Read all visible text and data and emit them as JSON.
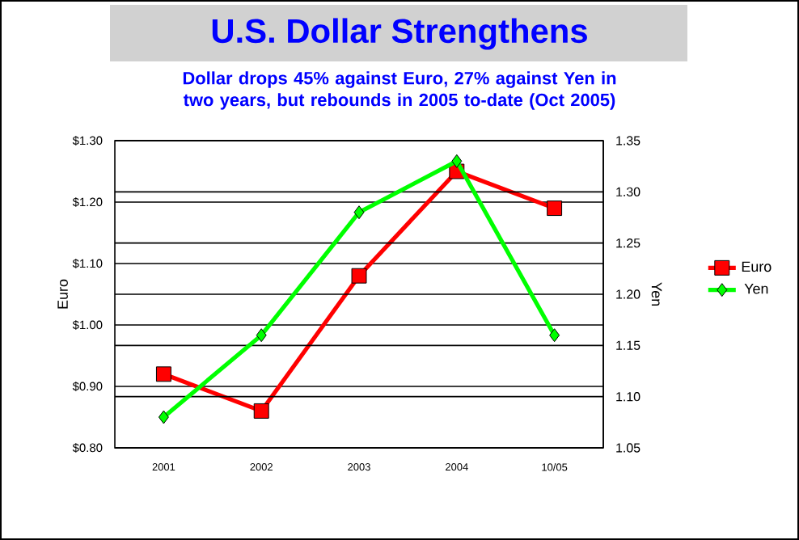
{
  "chart_data": {
    "type": "line",
    "title": "U.S. Dollar Strengthens",
    "subtitle": "Dollar drops 45% against Euro, 27% against Yen in two years, but rebounds in 2005 to-date (Oct 2005)",
    "categories": [
      "2001",
      "2002",
      "2003",
      "2004",
      "10/05"
    ],
    "ylabel": "Euro",
    "y2label": "Yen",
    "ylim": [
      0.8,
      1.3
    ],
    "yticks": [
      {
        "value": 0.8,
        "label": "$0.80"
      },
      {
        "value": 0.9,
        "label": "$0.90"
      },
      {
        "value": 1.0,
        "label": "$1.00"
      },
      {
        "value": 1.1,
        "label": "$1.10"
      },
      {
        "value": 1.2,
        "label": "$1.20"
      },
      {
        "value": 1.3,
        "label": "$1.30"
      }
    ],
    "y2lim": [
      1.05,
      1.35
    ],
    "y2ticks": [
      {
        "value": 1.05,
        "label": "1.05"
      },
      {
        "value": 1.1,
        "label": "1.10"
      },
      {
        "value": 1.15,
        "label": "1.15"
      },
      {
        "value": 1.2,
        "label": "1.20"
      },
      {
        "value": 1.25,
        "label": "1.25"
      },
      {
        "value": 1.3,
        "label": "1.30"
      },
      {
        "value": 1.35,
        "label": "1.35"
      }
    ],
    "grid": "y",
    "legend": "right",
    "series": [
      {
        "name": "Euro",
        "color": "#ff0000",
        "marker": "square",
        "values": [
          0.92,
          0.86,
          1.08,
          1.25,
          1.19
        ]
      },
      {
        "name": "Yen",
        "color": "#00ff00",
        "marker": "diamond",
        "axis": "y2",
        "values": [
          1.08,
          1.16,
          1.28,
          1.33,
          1.16
        ]
      }
    ]
  }
}
